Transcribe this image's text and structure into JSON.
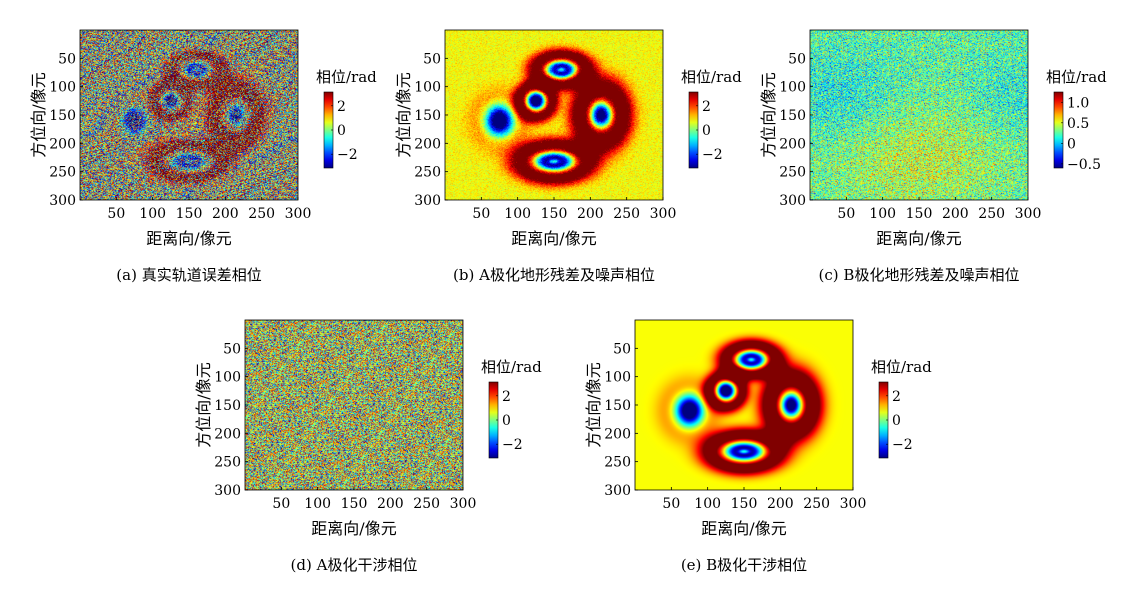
{
  "figure": {
    "layout": "2 rows: three panels on top, two panels below"
  },
  "chart_data": [
    {
      "id": "a",
      "type": "heatmap",
      "caption": "(a) 真实轨道误差相位",
      "xlabel": "距离向/像元",
      "ylabel": "方位向/像元",
      "xlim": [
        0,
        300
      ],
      "ylim": [
        0,
        300
      ],
      "y_reversed": true,
      "xticks": [
        50,
        100,
        150,
        200,
        250,
        300
      ],
      "yticks": [
        50,
        100,
        150,
        200,
        250,
        300
      ],
      "colorbar": {
        "label": "相位/rad",
        "range": [
          -3.14,
          3.14
        ],
        "ticks": [
          2,
          0,
          -2
        ],
        "ticklabels": [
          "2",
          "0",
          "−2"
        ],
        "colormap": "jet"
      },
      "pattern": "wrapped",
      "noise": 0.85,
      "background_value": 0.4,
      "grid": false
    },
    {
      "id": "b",
      "type": "heatmap",
      "caption": "(b) A极化地形残差及噪声相位",
      "xlabel": "距离向/像元",
      "ylabel": "方位向/像元",
      "xlim": [
        0,
        300
      ],
      "ylim": [
        0,
        300
      ],
      "y_reversed": true,
      "xticks": [
        50,
        100,
        150,
        200,
        250,
        300
      ],
      "yticks": [
        50,
        100,
        150,
        200,
        250,
        300
      ],
      "colorbar": {
        "label": "相位/rad",
        "range": [
          -3.14,
          3.14
        ],
        "ticks": [
          2,
          0,
          -2
        ],
        "ticklabels": [
          "2",
          "0",
          "−2"
        ],
        "colormap": "jet"
      },
      "pattern": "blobs",
      "noise": 0.35,
      "background_value": 1.0,
      "grid": false
    },
    {
      "id": "c",
      "type": "heatmap",
      "caption": "(c) B极化地形残差及噪声相位",
      "xlabel": "距离向/像元",
      "ylabel": "方位向/像元",
      "xlim": [
        0,
        300
      ],
      "ylim": [
        0,
        300
      ],
      "y_reversed": true,
      "xticks": [
        50,
        100,
        150,
        200,
        250,
        300
      ],
      "yticks": [
        50,
        100,
        150,
        200,
        250,
        300
      ],
      "colorbar": {
        "label": "相位/rad",
        "range": [
          -0.6,
          1.25
        ],
        "ticks": [
          1.0,
          0.5,
          0,
          -0.5
        ],
        "ticklabels": [
          "1.0",
          "0.5",
          "0",
          "−0.5"
        ],
        "colormap": "jet"
      },
      "pattern": "smooth_noise",
      "noise": 0.22,
      "background_value": 0.35,
      "grid": false
    },
    {
      "id": "d",
      "type": "heatmap",
      "caption": "(d) A极化干涉相位",
      "xlabel": "距离向/像元",
      "ylabel": "方位向/像元",
      "xlim": [
        0,
        300
      ],
      "ylim": [
        0,
        300
      ],
      "y_reversed": true,
      "xticks": [
        50,
        100,
        150,
        200,
        250,
        300
      ],
      "yticks": [
        50,
        100,
        150,
        200,
        250,
        300
      ],
      "colorbar": {
        "label": "相位/rad",
        "range": [
          -3.14,
          3.14
        ],
        "ticks": [
          2,
          0,
          -2
        ],
        "ticklabels": [
          "2",
          "0",
          "−2"
        ],
        "colormap": "jet"
      },
      "pattern": "noise",
      "noise": 1.0,
      "background_value": 0.6,
      "grid": false
    },
    {
      "id": "e",
      "type": "heatmap",
      "caption": "(e) B极化干涉相位",
      "xlabel": "距离向/像元",
      "ylabel": "方位向/像元",
      "xlim": [
        0,
        300
      ],
      "ylim": [
        0,
        300
      ],
      "y_reversed": true,
      "xticks": [
        50,
        100,
        150,
        200,
        250,
        300
      ],
      "yticks": [
        50,
        100,
        150,
        200,
        250,
        300
      ],
      "colorbar": {
        "label": "相位/rad",
        "range": [
          -3.14,
          3.14
        ],
        "ticks": [
          2,
          0,
          -2
        ],
        "ticklabels": [
          "2",
          "0",
          "−2"
        ],
        "colormap": "jet"
      },
      "pattern": "blobs",
      "noise": 0.0,
      "background_value": 1.0,
      "grid": false
    }
  ],
  "surface_features": [
    {
      "name": "top-ring",
      "x": 160,
      "y": 70,
      "kind": "ring"
    },
    {
      "name": "left-dip",
      "x": 75,
      "y": 160,
      "kind": "minimum"
    },
    {
      "name": "mid-dip",
      "x": 125,
      "y": 125,
      "kind": "minimum"
    },
    {
      "name": "right-dip",
      "x": 215,
      "y": 150,
      "kind": "minimum"
    },
    {
      "name": "bottom-ring",
      "x": 150,
      "y": 232,
      "kind": "ring"
    }
  ]
}
